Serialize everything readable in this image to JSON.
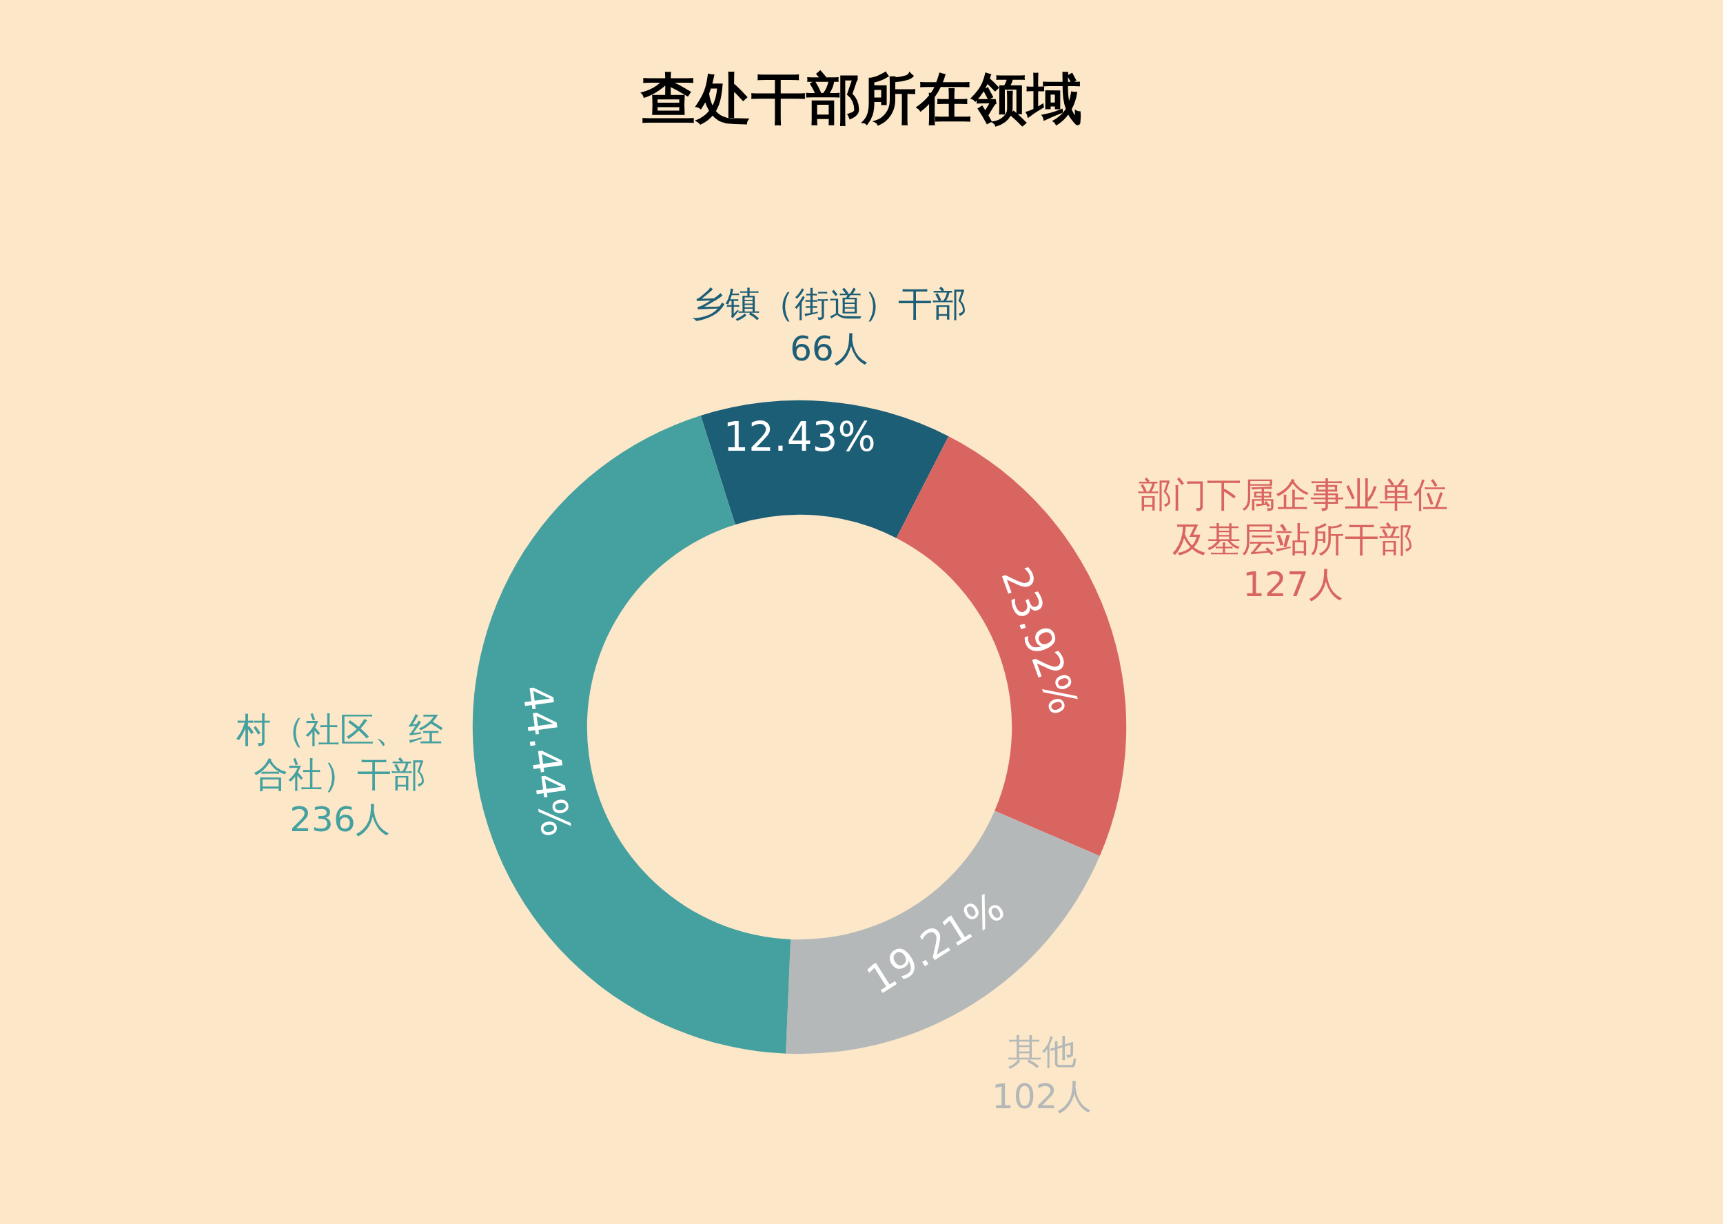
{
  "chart_data": {
    "type": "donut",
    "title": "查处干部所在领域",
    "categories": [
      "乡镇（街道）干部",
      "部门下属企事业单位及基层站所干部",
      "其他",
      "村（社区、经合社）干部"
    ],
    "values": [
      66,
      127,
      102,
      236
    ],
    "colors": [
      "#1d5e77",
      "#d96561",
      "#b4b8b8",
      "#45a0a0"
    ],
    "value_labels": [
      "66人",
      "127人",
      "102人",
      "236人"
    ],
    "annotations": [
      {
        "text": "12.43%",
        "x": "乡镇（街道）干部"
      },
      {
        "text": "23.92%",
        "x": "部门下属企事业单位及基层站所干部"
      },
      {
        "text": "19.21%",
        "x": "其他"
      },
      {
        "text": "44.44%",
        "x": "村（社区、经合社）干部"
      }
    ],
    "legend": false
  }
}
